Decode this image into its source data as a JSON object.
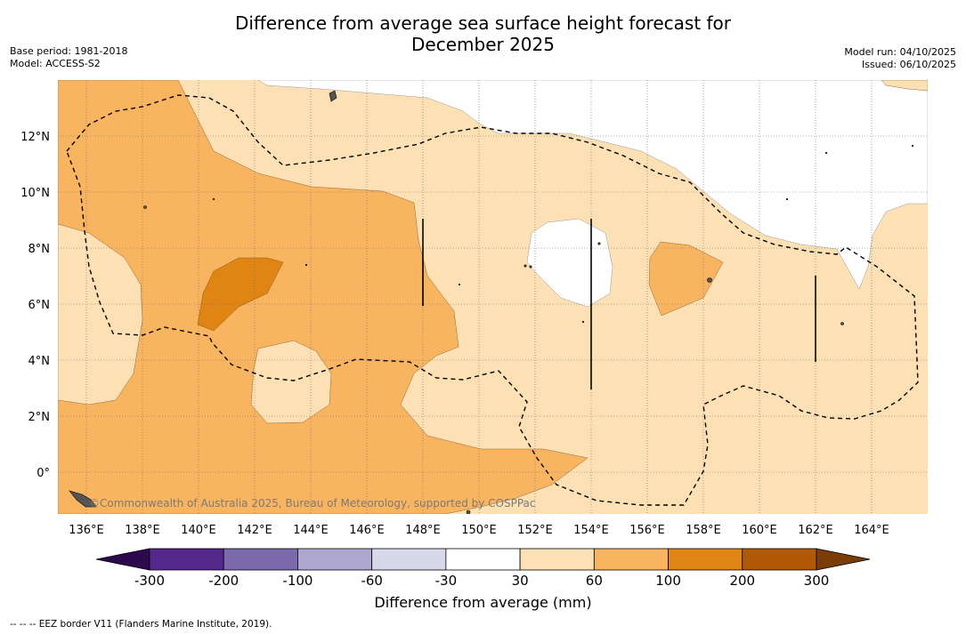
{
  "title_line1": "Difference from average sea surface height forecast for",
  "title_line2": "December 2025",
  "base_period": "Base period: 1981-2018",
  "model": "Model: ACCESS-S2",
  "model_run": "Model run: 04/10/2025",
  "issued": "Issued: 06/10/2025",
  "credit": "©Commonwealth of Australia 2025, Bureau of Meteorology, supported by COSPPac",
  "lon_labels": [
    "136°E",
    "138°E",
    "140°E",
    "142°E",
    "144°E",
    "146°E",
    "148°E",
    "150°E",
    "152°E",
    "154°E",
    "156°E",
    "158°E",
    "160°E",
    "162°E",
    "164°E"
  ],
  "lat_labels": [
    "12°N",
    "10°N",
    "8°N",
    "6°N",
    "4°N",
    "2°N",
    "0°"
  ],
  "colorbar": {
    "ticks": [
      "-300",
      "-200",
      "-100",
      "-60",
      "-30",
      "30",
      "60",
      "100",
      "200",
      "300"
    ],
    "colors": [
      "#2d0a4e",
      "#54288a",
      "#7b6aac",
      "#aea8d1",
      "#d8d8eb",
      "#ffffff",
      "#fde0b4",
      "#f9b460",
      "#e08414",
      "#b05a08",
      "#7a3d06"
    ],
    "label": "Difference from average (mm)"
  },
  "footer": "--  --  -- EEZ border V11 (Flanders Marine Institute, 2019)."
}
